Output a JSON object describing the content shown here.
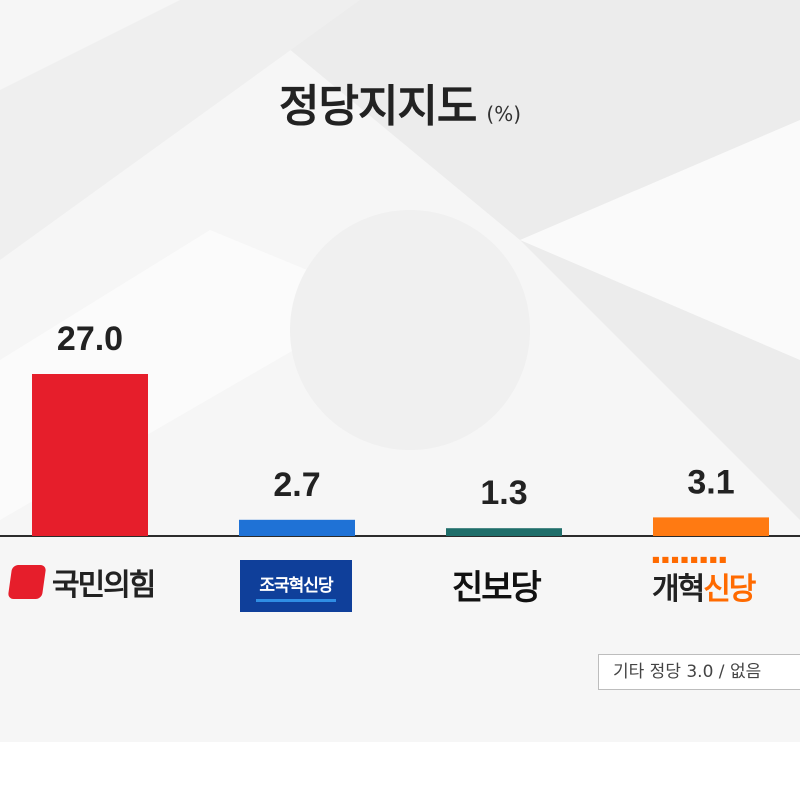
{
  "title": "정당지지도",
  "title_unit": "(%)",
  "colors": {
    "ppp": "#e61e2b",
    "rebuild": "#1f72d6",
    "progressive": "#1f6e6a",
    "reform": "#ff7a12",
    "baseline": "#2b2b2b"
  },
  "icons": {
    "ppp": "ppp-party-logo",
    "rebuild": "rebuild-korea-party-logo",
    "progressive": "progressive-party-logo",
    "reform": "reform-party-logo"
  },
  "chart_data": {
    "type": "bar",
    "title": "정당지지도",
    "unit": "%",
    "categories": [
      "국민의힘",
      "조국혁신당",
      "진보당",
      "개혁신당"
    ],
    "values": [
      27.0,
      2.7,
      1.3,
      3.1
    ],
    "value_labels": [
      "27.0",
      "2.7",
      "1.3",
      "3.1"
    ],
    "ylim": [
      0,
      27.0
    ],
    "grid": false,
    "legend": "none"
  },
  "logos": {
    "ppp": "국민의힘",
    "rebuild": "조국혁신당",
    "progressive": "진보당",
    "reform_prefix": "개혁",
    "reform_suffix": "신당"
  },
  "note": "기타 정당 3.0 / 없음"
}
